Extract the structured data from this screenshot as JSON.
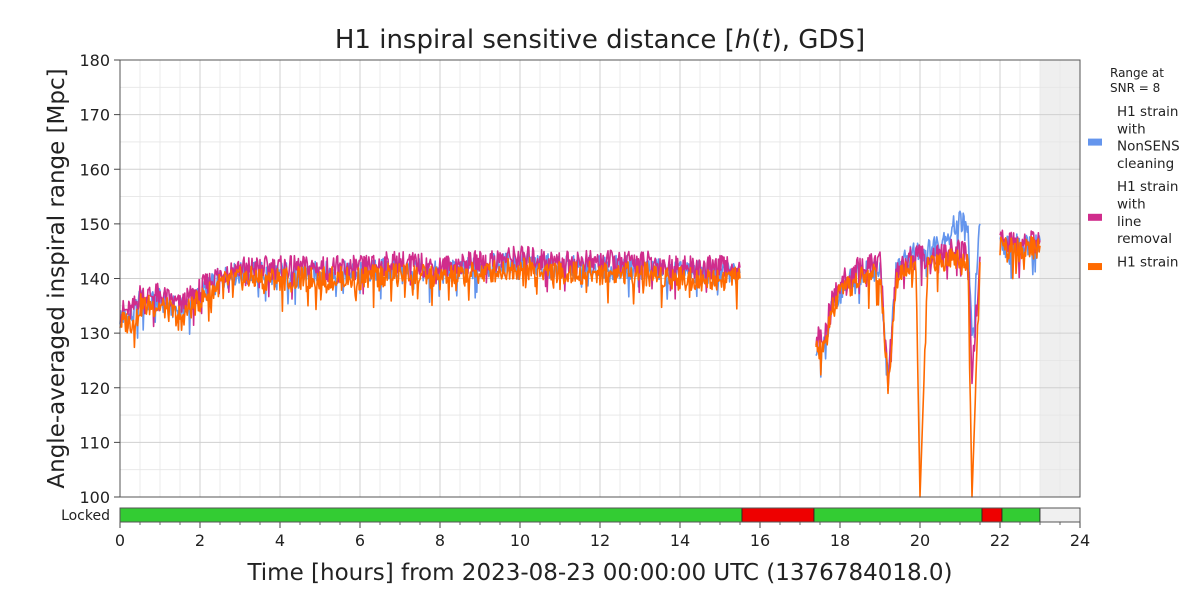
{
  "chart_data": {
    "type": "line",
    "title": "H1 inspiral sensitive distance [h(t), GDS]",
    "title_parts": [
      "H1 inspiral sensitive distance [",
      "h",
      "(",
      "t",
      "), GDS]"
    ],
    "xlabel": "Time [hours] from 2023-08-23 00:00:00 UTC (1376784018.0)",
    "ylabel": "Angle-averaged inspiral range [Mpc]",
    "xlim": [
      0,
      24
    ],
    "ylim": [
      100,
      180
    ],
    "xticks": [
      0,
      2,
      4,
      6,
      8,
      10,
      12,
      14,
      16,
      18,
      20,
      22,
      24
    ],
    "yticks": [
      100,
      110,
      120,
      130,
      140,
      150,
      160,
      170,
      180
    ],
    "grid": true,
    "future_shaded_from": 23.0,
    "legend_title": "Range at\nSNR = 8",
    "legend_position": "right",
    "series": [
      {
        "name": "H1 strain with NonSENS cleaning",
        "color": "#6495ed",
        "points": [
          [
            0.0,
            133
          ],
          [
            0.3,
            133
          ],
          [
            0.5,
            136
          ],
          [
            1.0,
            136
          ],
          [
            1.5,
            134
          ],
          [
            2.0,
            137
          ],
          [
            2.5,
            140
          ],
          [
            3.0,
            141
          ],
          [
            4.0,
            141
          ],
          [
            5.0,
            141
          ],
          [
            6.0,
            141
          ],
          [
            7.0,
            142
          ],
          [
            8.0,
            141
          ],
          [
            9.0,
            142
          ],
          [
            10.0,
            143
          ],
          [
            11.0,
            142
          ],
          [
            12.0,
            142
          ],
          [
            13.0,
            142
          ],
          [
            14.0,
            141
          ],
          [
            15.0,
            141
          ],
          [
            15.5,
            141
          ],
          null,
          [
            17.4,
            128
          ],
          [
            17.6,
            128
          ],
          [
            17.8,
            135
          ],
          [
            18.0,
            138
          ],
          [
            18.5,
            141
          ],
          [
            19.0,
            142
          ],
          [
            19.2,
            121
          ],
          [
            19.4,
            141
          ],
          [
            19.6,
            143
          ],
          [
            19.9,
            145
          ],
          [
            20.2,
            145
          ],
          [
            20.5,
            147
          ],
          [
            20.8,
            149
          ],
          [
            21.0,
            151
          ],
          [
            21.2,
            149
          ],
          [
            21.3,
            128
          ],
          [
            21.5,
            150
          ],
          null,
          [
            22.0,
            146
          ],
          [
            22.5,
            146
          ],
          [
            23.0,
            147
          ]
        ]
      },
      {
        "name": "H1 strain with line removal",
        "color": "#d02c8c",
        "points": [
          [
            0.0,
            134
          ],
          [
            0.3,
            134
          ],
          [
            0.5,
            137
          ],
          [
            1.0,
            137
          ],
          [
            1.5,
            135
          ],
          [
            2.0,
            138
          ],
          [
            2.5,
            141
          ],
          [
            3.0,
            142
          ],
          [
            4.0,
            142
          ],
          [
            5.0,
            142
          ],
          [
            6.0,
            142
          ],
          [
            7.0,
            143
          ],
          [
            8.0,
            142
          ],
          [
            9.0,
            143
          ],
          [
            10.0,
            144
          ],
          [
            11.0,
            143
          ],
          [
            12.0,
            143
          ],
          [
            13.0,
            143
          ],
          [
            14.0,
            142
          ],
          [
            15.0,
            142
          ],
          [
            15.5,
            142
          ],
          null,
          [
            17.4,
            129
          ],
          [
            17.6,
            129
          ],
          [
            17.8,
            136
          ],
          [
            18.0,
            139
          ],
          [
            18.5,
            142
          ],
          [
            19.0,
            143
          ],
          [
            19.2,
            121
          ],
          [
            19.4,
            141
          ],
          [
            19.6,
            143
          ],
          [
            19.9,
            144
          ],
          [
            20.2,
            144
          ],
          [
            20.5,
            144
          ],
          [
            20.8,
            145
          ],
          [
            21.0,
            145
          ],
          [
            21.2,
            144
          ],
          [
            21.3,
            122
          ],
          [
            21.5,
            144
          ],
          null,
          [
            22.0,
            147
          ],
          [
            22.5,
            146
          ],
          [
            23.0,
            147
          ]
        ]
      },
      {
        "name": "H1 strain",
        "color": "#ff6a00",
        "points": [
          [
            0.0,
            132
          ],
          [
            0.3,
            132
          ],
          [
            0.5,
            135
          ],
          [
            1.0,
            135
          ],
          [
            1.5,
            133
          ],
          [
            2.0,
            136
          ],
          [
            2.5,
            139
          ],
          [
            3.0,
            140
          ],
          [
            4.0,
            140
          ],
          [
            5.0,
            140
          ],
          [
            6.0,
            140
          ],
          [
            7.0,
            141
          ],
          [
            8.0,
            140
          ],
          [
            9.0,
            141
          ],
          [
            10.0,
            142
          ],
          [
            11.0,
            141
          ],
          [
            12.0,
            141
          ],
          [
            13.0,
            141
          ],
          [
            14.0,
            140
          ],
          [
            15.0,
            140
          ],
          [
            15.5,
            140
          ],
          null,
          [
            17.4,
            127
          ],
          [
            17.6,
            127
          ],
          [
            17.8,
            134
          ],
          [
            18.0,
            137
          ],
          [
            18.5,
            140
          ],
          [
            19.0,
            141
          ],
          [
            19.2,
            120
          ],
          [
            19.4,
            140
          ],
          [
            19.6,
            142
          ],
          [
            19.9,
            142
          ],
          [
            20.0,
            100
          ],
          [
            20.2,
            143
          ],
          [
            20.5,
            143
          ],
          [
            20.8,
            144
          ],
          [
            21.0,
            144
          ],
          [
            21.2,
            143
          ],
          [
            21.3,
            100
          ],
          [
            21.5,
            143
          ],
          null,
          [
            22.0,
            146
          ],
          [
            22.5,
            145
          ],
          [
            23.0,
            146
          ]
        ]
      }
    ],
    "state_timeline": {
      "label": "Locked",
      "segments": [
        {
          "start": 0.0,
          "end": 15.55,
          "state": "locked",
          "color": "#33cc33"
        },
        {
          "start": 15.55,
          "end": 17.35,
          "state": "unlocked",
          "color": "#ee0000"
        },
        {
          "start": 17.35,
          "end": 21.55,
          "state": "locked",
          "color": "#33cc33"
        },
        {
          "start": 21.55,
          "end": 22.05,
          "state": "unlocked",
          "color": "#ee0000"
        },
        {
          "start": 22.05,
          "end": 23.0,
          "state": "locked",
          "color": "#33cc33"
        },
        {
          "start": 23.0,
          "end": 24.0,
          "state": "future",
          "color": "#f0f0f0"
        }
      ]
    }
  }
}
